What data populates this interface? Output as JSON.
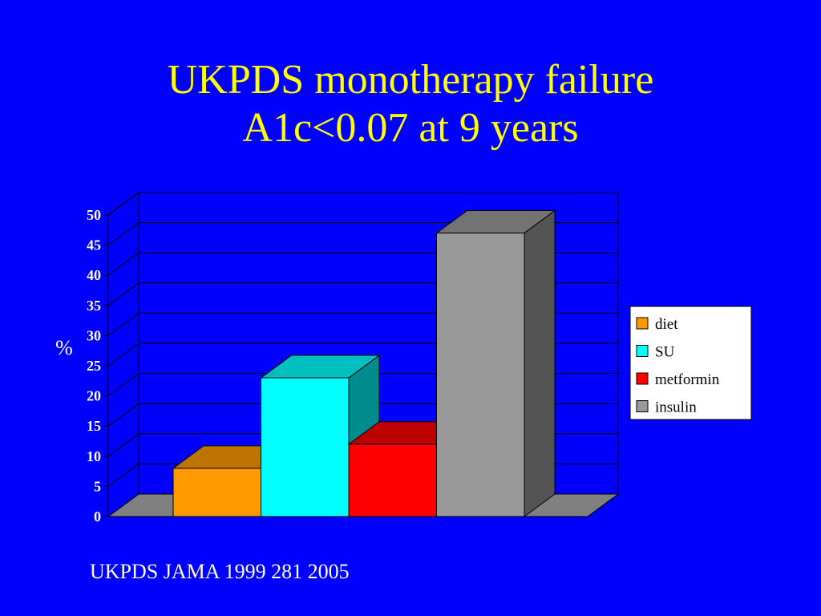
{
  "slide": {
    "title_line1": "UKPDS monotherapy failure",
    "title_line2": "A1c<0.07 at 9 years",
    "source": "UKPDS JAMA 1999 281 2005"
  },
  "chart_data": {
    "type": "bar",
    "categories": [
      "diet",
      "SU",
      "metformin",
      "insulin"
    ],
    "values": [
      8,
      23,
      12,
      47
    ],
    "colors": [
      "#ff9900",
      "#00ffff",
      "#ff0000",
      "#999999"
    ],
    "ylabel": "%",
    "ylim": [
      0,
      50
    ],
    "yticks": [
      "0",
      "5",
      "10",
      "15",
      "20",
      "25",
      "30",
      "35",
      "40",
      "45",
      "50"
    ],
    "grid": true,
    "legend": {
      "placement": "right",
      "entries": [
        "diet",
        "SU",
        "metformin",
        "insulin"
      ]
    }
  }
}
